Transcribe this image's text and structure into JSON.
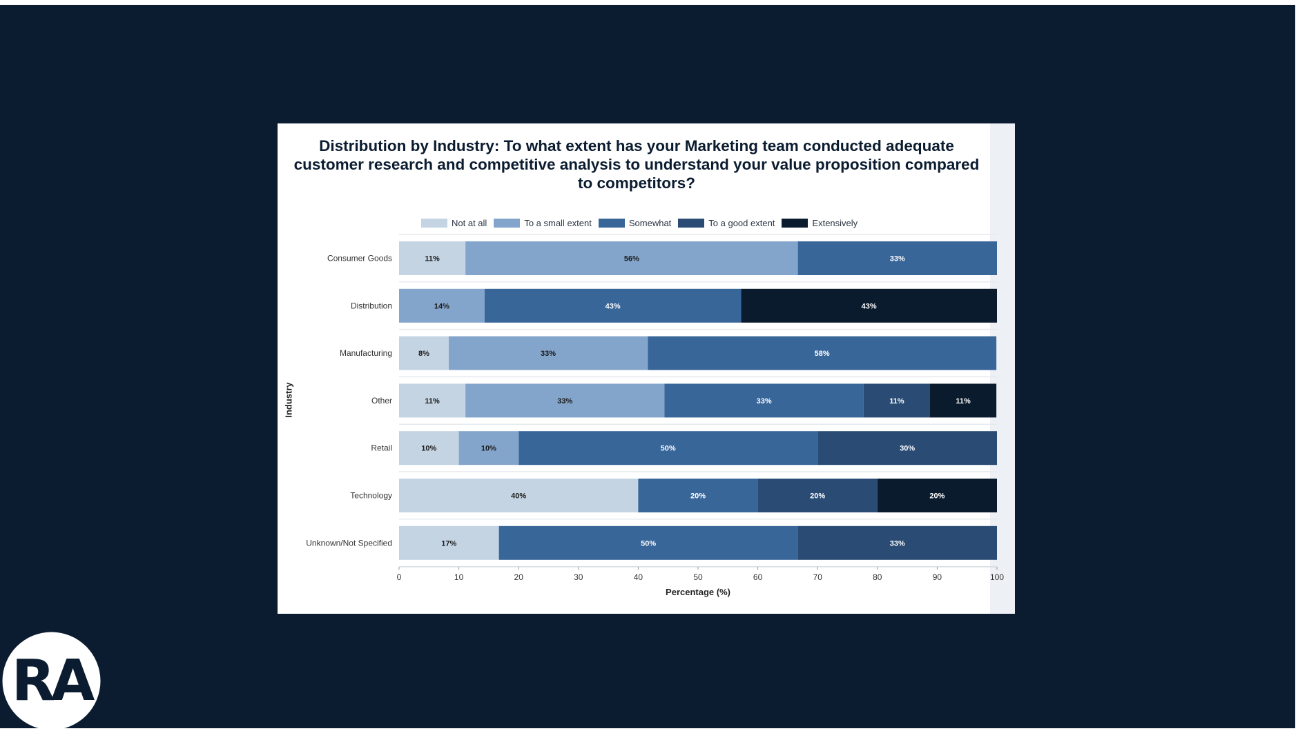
{
  "brand": {
    "logo_text": "RA"
  },
  "colors": {
    "slide_background": "#0b1c30",
    "card_background": "#ffffff",
    "not_at_all": "#c4d4e3",
    "to_a_small_extent": "#84a5cb",
    "somewhat": "#386699",
    "to_a_good_extent": "#2a4c74",
    "extensively": "#0b1b2e"
  },
  "chart_data": {
    "type": "bar",
    "orientation": "horizontal",
    "stacked": true,
    "title": "Distribution by Industry: To what extent has your Marketing team conducted adequate customer research and competitive analysis to understand your value proposition compared to competitors?",
    "xlabel": "Percentage (%)",
    "ylabel": "Industry",
    "xlim": [
      0,
      100
    ],
    "x_ticks": [
      0,
      10,
      20,
      30,
      40,
      50,
      60,
      70,
      80,
      90,
      100
    ],
    "legend_position": "top",
    "grid": false,
    "categories": [
      "Consumer Goods",
      "Distribution",
      "Manufacturing",
      "Other",
      "Retail",
      "Technology",
      "Unknown/Not Specified"
    ],
    "series": [
      {
        "name": "Not at all",
        "color": "#c4d4e3",
        "label_color": "#1a1a1a",
        "values": [
          11.1,
          0,
          8.3,
          11.1,
          10,
          40,
          16.7
        ],
        "labels": [
          "11%",
          "",
          "8%",
          "11%",
          "10%",
          "40%",
          "17%"
        ]
      },
      {
        "name": "To a small extent",
        "color": "#84a5cb",
        "label_color": "#1a1a1a",
        "values": [
          55.6,
          14.3,
          33.3,
          33.3,
          10,
          0,
          0
        ],
        "labels": [
          "56%",
          "14%",
          "33%",
          "33%",
          "10%",
          "",
          ""
        ]
      },
      {
        "name": "Somewhat",
        "color": "#386699",
        "label_color": "#ffffff",
        "values": [
          33.3,
          42.9,
          58.3,
          33.3,
          50,
          20,
          50
        ],
        "labels": [
          "33%",
          "43%",
          "58%",
          "33%",
          "50%",
          "20%",
          "50%"
        ]
      },
      {
        "name": "To a good extent",
        "color": "#2a4c74",
        "label_color": "#ffffff",
        "values": [
          0,
          0,
          0,
          11.1,
          30,
          20,
          33.3
        ],
        "labels": [
          "",
          "",
          "",
          "11%",
          "30%",
          "20%",
          "33%"
        ]
      },
      {
        "name": "Extensively",
        "color": "#0b1b2e",
        "label_color": "#ffffff",
        "values": [
          0,
          42.9,
          0,
          11.1,
          0,
          20,
          0
        ],
        "labels": [
          "",
          "43%",
          "",
          "11%",
          "",
          "20%",
          ""
        ]
      }
    ]
  }
}
